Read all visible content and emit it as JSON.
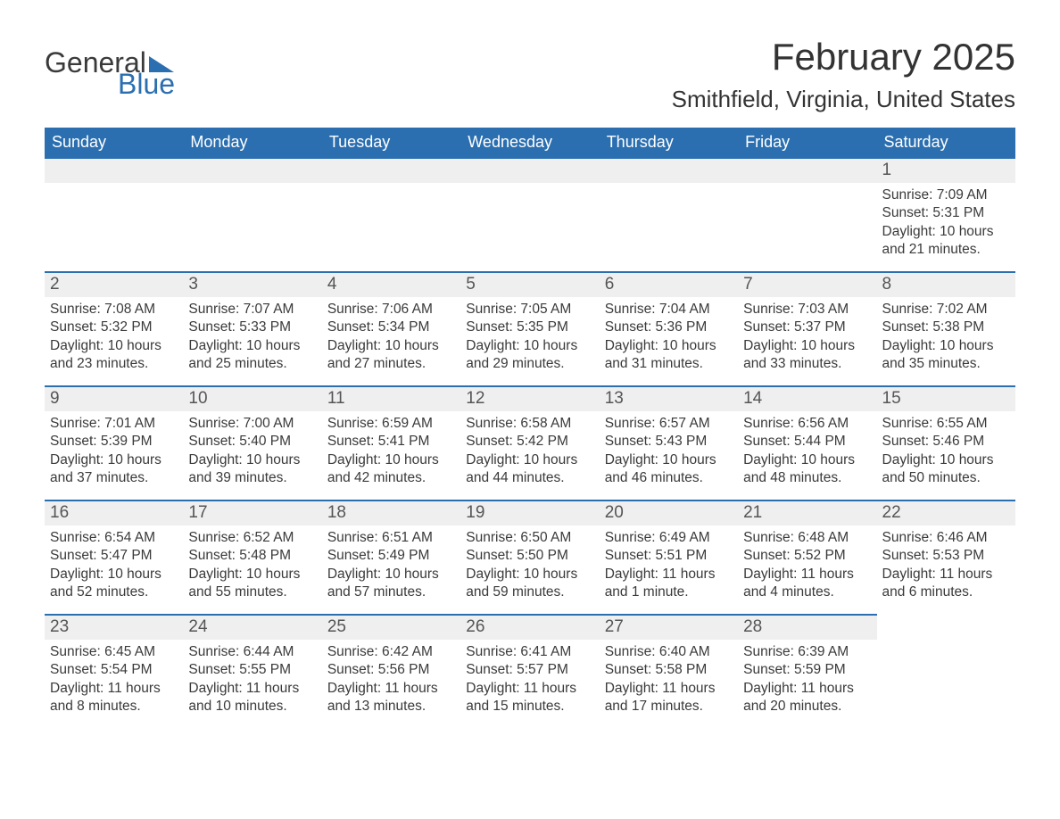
{
  "logo": {
    "line1": "General",
    "line2": "Blue",
    "accent_color": "#2b6fb0"
  },
  "title": "February 2025",
  "location": "Smithfield, Virginia, United States",
  "colors": {
    "header_bg": "#2b6fb0",
    "header_fg": "#ffffff",
    "daynum_bg": "#efefef",
    "daynum_border": "#2b6fb0",
    "text": "#3a3a3a"
  },
  "weekdays": [
    "Sunday",
    "Monday",
    "Tuesday",
    "Wednesday",
    "Thursday",
    "Friday",
    "Saturday"
  ],
  "weeks": [
    [
      null,
      null,
      null,
      null,
      null,
      null,
      {
        "n": "1",
        "sunrise": "Sunrise: 7:09 AM",
        "sunset": "Sunset: 5:31 PM",
        "daylight": "Daylight: 10 hours and 21 minutes."
      }
    ],
    [
      {
        "n": "2",
        "sunrise": "Sunrise: 7:08 AM",
        "sunset": "Sunset: 5:32 PM",
        "daylight": "Daylight: 10 hours and 23 minutes."
      },
      {
        "n": "3",
        "sunrise": "Sunrise: 7:07 AM",
        "sunset": "Sunset: 5:33 PM",
        "daylight": "Daylight: 10 hours and 25 minutes."
      },
      {
        "n": "4",
        "sunrise": "Sunrise: 7:06 AM",
        "sunset": "Sunset: 5:34 PM",
        "daylight": "Daylight: 10 hours and 27 minutes."
      },
      {
        "n": "5",
        "sunrise": "Sunrise: 7:05 AM",
        "sunset": "Sunset: 5:35 PM",
        "daylight": "Daylight: 10 hours and 29 minutes."
      },
      {
        "n": "6",
        "sunrise": "Sunrise: 7:04 AM",
        "sunset": "Sunset: 5:36 PM",
        "daylight": "Daylight: 10 hours and 31 minutes."
      },
      {
        "n": "7",
        "sunrise": "Sunrise: 7:03 AM",
        "sunset": "Sunset: 5:37 PM",
        "daylight": "Daylight: 10 hours and 33 minutes."
      },
      {
        "n": "8",
        "sunrise": "Sunrise: 7:02 AM",
        "sunset": "Sunset: 5:38 PM",
        "daylight": "Daylight: 10 hours and 35 minutes."
      }
    ],
    [
      {
        "n": "9",
        "sunrise": "Sunrise: 7:01 AM",
        "sunset": "Sunset: 5:39 PM",
        "daylight": "Daylight: 10 hours and 37 minutes."
      },
      {
        "n": "10",
        "sunrise": "Sunrise: 7:00 AM",
        "sunset": "Sunset: 5:40 PM",
        "daylight": "Daylight: 10 hours and 39 minutes."
      },
      {
        "n": "11",
        "sunrise": "Sunrise: 6:59 AM",
        "sunset": "Sunset: 5:41 PM",
        "daylight": "Daylight: 10 hours and 42 minutes."
      },
      {
        "n": "12",
        "sunrise": "Sunrise: 6:58 AM",
        "sunset": "Sunset: 5:42 PM",
        "daylight": "Daylight: 10 hours and 44 minutes."
      },
      {
        "n": "13",
        "sunrise": "Sunrise: 6:57 AM",
        "sunset": "Sunset: 5:43 PM",
        "daylight": "Daylight: 10 hours and 46 minutes."
      },
      {
        "n": "14",
        "sunrise": "Sunrise: 6:56 AM",
        "sunset": "Sunset: 5:44 PM",
        "daylight": "Daylight: 10 hours and 48 minutes."
      },
      {
        "n": "15",
        "sunrise": "Sunrise: 6:55 AM",
        "sunset": "Sunset: 5:46 PM",
        "daylight": "Daylight: 10 hours and 50 minutes."
      }
    ],
    [
      {
        "n": "16",
        "sunrise": "Sunrise: 6:54 AM",
        "sunset": "Sunset: 5:47 PM",
        "daylight": "Daylight: 10 hours and 52 minutes."
      },
      {
        "n": "17",
        "sunrise": "Sunrise: 6:52 AM",
        "sunset": "Sunset: 5:48 PM",
        "daylight": "Daylight: 10 hours and 55 minutes."
      },
      {
        "n": "18",
        "sunrise": "Sunrise: 6:51 AM",
        "sunset": "Sunset: 5:49 PM",
        "daylight": "Daylight: 10 hours and 57 minutes."
      },
      {
        "n": "19",
        "sunrise": "Sunrise: 6:50 AM",
        "sunset": "Sunset: 5:50 PM",
        "daylight": "Daylight: 10 hours and 59 minutes."
      },
      {
        "n": "20",
        "sunrise": "Sunrise: 6:49 AM",
        "sunset": "Sunset: 5:51 PM",
        "daylight": "Daylight: 11 hours and 1 minute."
      },
      {
        "n": "21",
        "sunrise": "Sunrise: 6:48 AM",
        "sunset": "Sunset: 5:52 PM",
        "daylight": "Daylight: 11 hours and 4 minutes."
      },
      {
        "n": "22",
        "sunrise": "Sunrise: 6:46 AM",
        "sunset": "Sunset: 5:53 PM",
        "daylight": "Daylight: 11 hours and 6 minutes."
      }
    ],
    [
      {
        "n": "23",
        "sunrise": "Sunrise: 6:45 AM",
        "sunset": "Sunset: 5:54 PM",
        "daylight": "Daylight: 11 hours and 8 minutes."
      },
      {
        "n": "24",
        "sunrise": "Sunrise: 6:44 AM",
        "sunset": "Sunset: 5:55 PM",
        "daylight": "Daylight: 11 hours and 10 minutes."
      },
      {
        "n": "25",
        "sunrise": "Sunrise: 6:42 AM",
        "sunset": "Sunset: 5:56 PM",
        "daylight": "Daylight: 11 hours and 13 minutes."
      },
      {
        "n": "26",
        "sunrise": "Sunrise: 6:41 AM",
        "sunset": "Sunset: 5:57 PM",
        "daylight": "Daylight: 11 hours and 15 minutes."
      },
      {
        "n": "27",
        "sunrise": "Sunrise: 6:40 AM",
        "sunset": "Sunset: 5:58 PM",
        "daylight": "Daylight: 11 hours and 17 minutes."
      },
      {
        "n": "28",
        "sunrise": "Sunrise: 6:39 AM",
        "sunset": "Sunset: 5:59 PM",
        "daylight": "Daylight: 11 hours and 20 minutes."
      },
      null
    ]
  ]
}
